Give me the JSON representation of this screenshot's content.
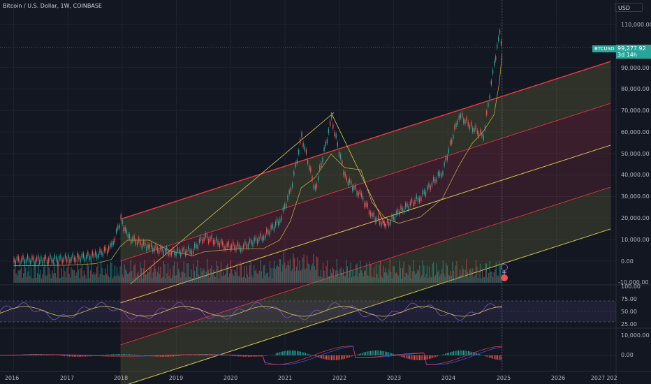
{
  "header": {
    "title": "Bitcoin / U.S. Dollar, 1W, COINBASE",
    "currency": "USD"
  },
  "symbol": "BTCUSD",
  "price_tag": {
    "price": "99,277.92",
    "countdown": "3d 14h"
  },
  "price_axis": {
    "ticks": [
      "110,000.00",
      "90,000.00",
      "80,000.00",
      "70,000.00",
      "60,000.00",
      "50,000.00",
      "40,000.00",
      "30,000.00",
      "20,000.00",
      "10,000.00",
      "0.00",
      "-10,000.00"
    ]
  },
  "rsi_axis": {
    "ticks": [
      "100.00",
      "75.00",
      "50.00",
      "25.00"
    ]
  },
  "macd_axis": {
    "ticks": [
      "10,000.00",
      "0.00"
    ]
  },
  "time_axis": {
    "ticks": [
      "2016",
      "2017",
      "2018",
      "2019",
      "2020",
      "2021",
      "2022",
      "2023",
      "2024",
      "2025",
      "2026",
      "2027",
      "202"
    ]
  },
  "icons": {
    "add_indicator": "plus-circle-icon",
    "replay": "replay-icon"
  },
  "colors": {
    "background": "#131722",
    "up": "#26a69a",
    "down": "#ef5350",
    "channel_edge": "#f23645",
    "channel_mid": "#d7c94b",
    "rsi": "#7e57c2"
  },
  "chart_data": {
    "type": "line",
    "x": [
      2016.0,
      2016.5,
      2017.0,
      2017.5,
      2017.8,
      2017.97,
      2018.1,
      2018.5,
      2018.9,
      2019.3,
      2019.5,
      2019.9,
      2020.2,
      2020.6,
      2020.9,
      2021.1,
      2021.3,
      2021.55,
      2021.85,
      2022.1,
      2022.4,
      2022.6,
      2022.85,
      2023.1,
      2023.5,
      2023.9,
      2024.2,
      2024.45,
      2024.65,
      2024.85,
      2024.95,
      2025.0
    ],
    "series": [
      {
        "values": [
          430,
          650,
          1000,
          2500,
          6500,
          19500,
          11000,
          6500,
          4000,
          5000,
          11500,
          7200,
          6500,
          11500,
          19000,
          33000,
          58000,
          33000,
          66000,
          39000,
          30000,
          21000,
          16500,
          23000,
          30000,
          42000,
          68000,
          62000,
          58000,
          92000,
          106000,
          99277
        ]
      }
    ],
    "ylim": [
      -10000,
      115000
    ],
    "xlim": [
      2015.75,
      2027.1
    ]
  }
}
